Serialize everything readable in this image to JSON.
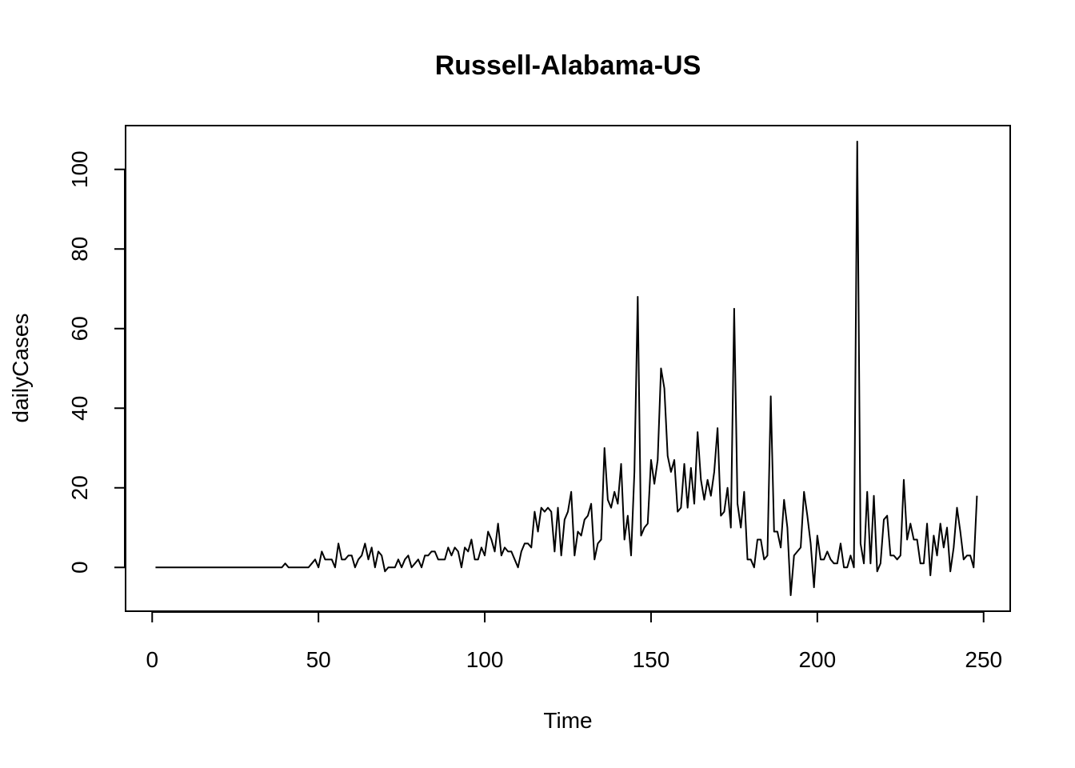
{
  "chart_data": {
    "type": "line",
    "title": "Russell-Alabama-US",
    "xlabel": "Time",
    "ylabel": "dailyCases",
    "xlim": [
      -8,
      258
    ],
    "ylim": [
      -11,
      111
    ],
    "xticks": [
      0,
      50,
      100,
      150,
      200,
      250
    ],
    "yticks": [
      0,
      20,
      40,
      60,
      80,
      100
    ],
    "grid": false,
    "legend": "none",
    "line_color": "#000000",
    "series": [
      {
        "values": [
          0,
          0,
          0,
          0,
          0,
          0,
          0,
          0,
          0,
          0,
          0,
          0,
          0,
          0,
          0,
          0,
          0,
          0,
          0,
          0,
          0,
          0,
          0,
          0,
          0,
          0,
          0,
          0,
          0,
          0,
          0,
          0,
          0,
          0,
          0,
          0,
          0,
          0,
          0,
          1,
          0,
          0,
          0,
          0,
          0,
          0,
          0,
          1,
          2,
          0,
          4,
          2,
          2,
          2,
          0,
          6,
          2,
          2,
          3,
          3,
          0,
          2,
          3,
          6,
          2,
          5,
          0,
          4,
          3,
          -1,
          0,
          0,
          0,
          2,
          0,
          2,
          3,
          0,
          1,
          2,
          0,
          3,
          3,
          4,
          4,
          2,
          2,
          2,
          5,
          3,
          5,
          4,
          0,
          5,
          4,
          7,
          2,
          2,
          5,
          3,
          9,
          7,
          4,
          11,
          3,
          5,
          4,
          4,
          2,
          0,
          4,
          6,
          6,
          5,
          14,
          9,
          15,
          14,
          15,
          14,
          4,
          15,
          3,
          12,
          14,
          19,
          3,
          9,
          8,
          12,
          13,
          16,
          2,
          6,
          7,
          30,
          17,
          15,
          19,
          16,
          26,
          7,
          13,
          3,
          24,
          68,
          8,
          10,
          11,
          27,
          21,
          27,
          50,
          45,
          28,
          24,
          27,
          14,
          15,
          26,
          15,
          25,
          16,
          34,
          22,
          17,
          22,
          18,
          24,
          35,
          13,
          14,
          20,
          10,
          65,
          16,
          10,
          19,
          2,
          2,
          0,
          7,
          7,
          2,
          3,
          43,
          9,
          9,
          5,
          17,
          10,
          -7,
          3,
          4,
          5,
          19,
          13,
          6,
          -5,
          8,
          2,
          2,
          4,
          2,
          1,
          1,
          6,
          0,
          0,
          3,
          0,
          107,
          6,
          1,
          19,
          1,
          18,
          -1,
          1,
          12,
          13,
          3,
          3,
          2,
          3,
          22,
          7,
          11,
          7,
          7,
          1,
          1,
          11,
          -2,
          8,
          3,
          11,
          5,
          10,
          -1,
          5,
          15,
          9,
          2,
          3,
          3,
          0,
          18
        ]
      }
    ]
  }
}
